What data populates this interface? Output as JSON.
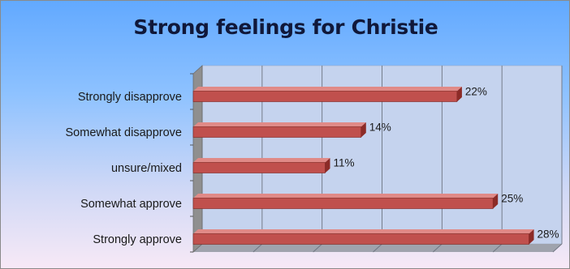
{
  "chart_data": {
    "type": "bar",
    "orientation": "horizontal",
    "title": "Strong feelings for Christie",
    "categories": [
      "Strongly approve",
      "Somewhat approve",
      "unsure/mixed",
      "Somewhat disapprove",
      "Strongly disapprove"
    ],
    "values": [
      28,
      25,
      11,
      14,
      22
    ],
    "value_labels": [
      "28%",
      "25%",
      "11%",
      "14%",
      "22%"
    ],
    "xlim": [
      0,
      30
    ],
    "grid": true,
    "legend": "none",
    "style": "3d",
    "colors": {
      "bar": "#c0504d",
      "bar_top": "#e08a87",
      "bar_side": "#8c2b27",
      "plot_back": "#c5d3ee",
      "floor": "#9fa3ad",
      "wall_left": "#8f8f8f"
    }
  }
}
